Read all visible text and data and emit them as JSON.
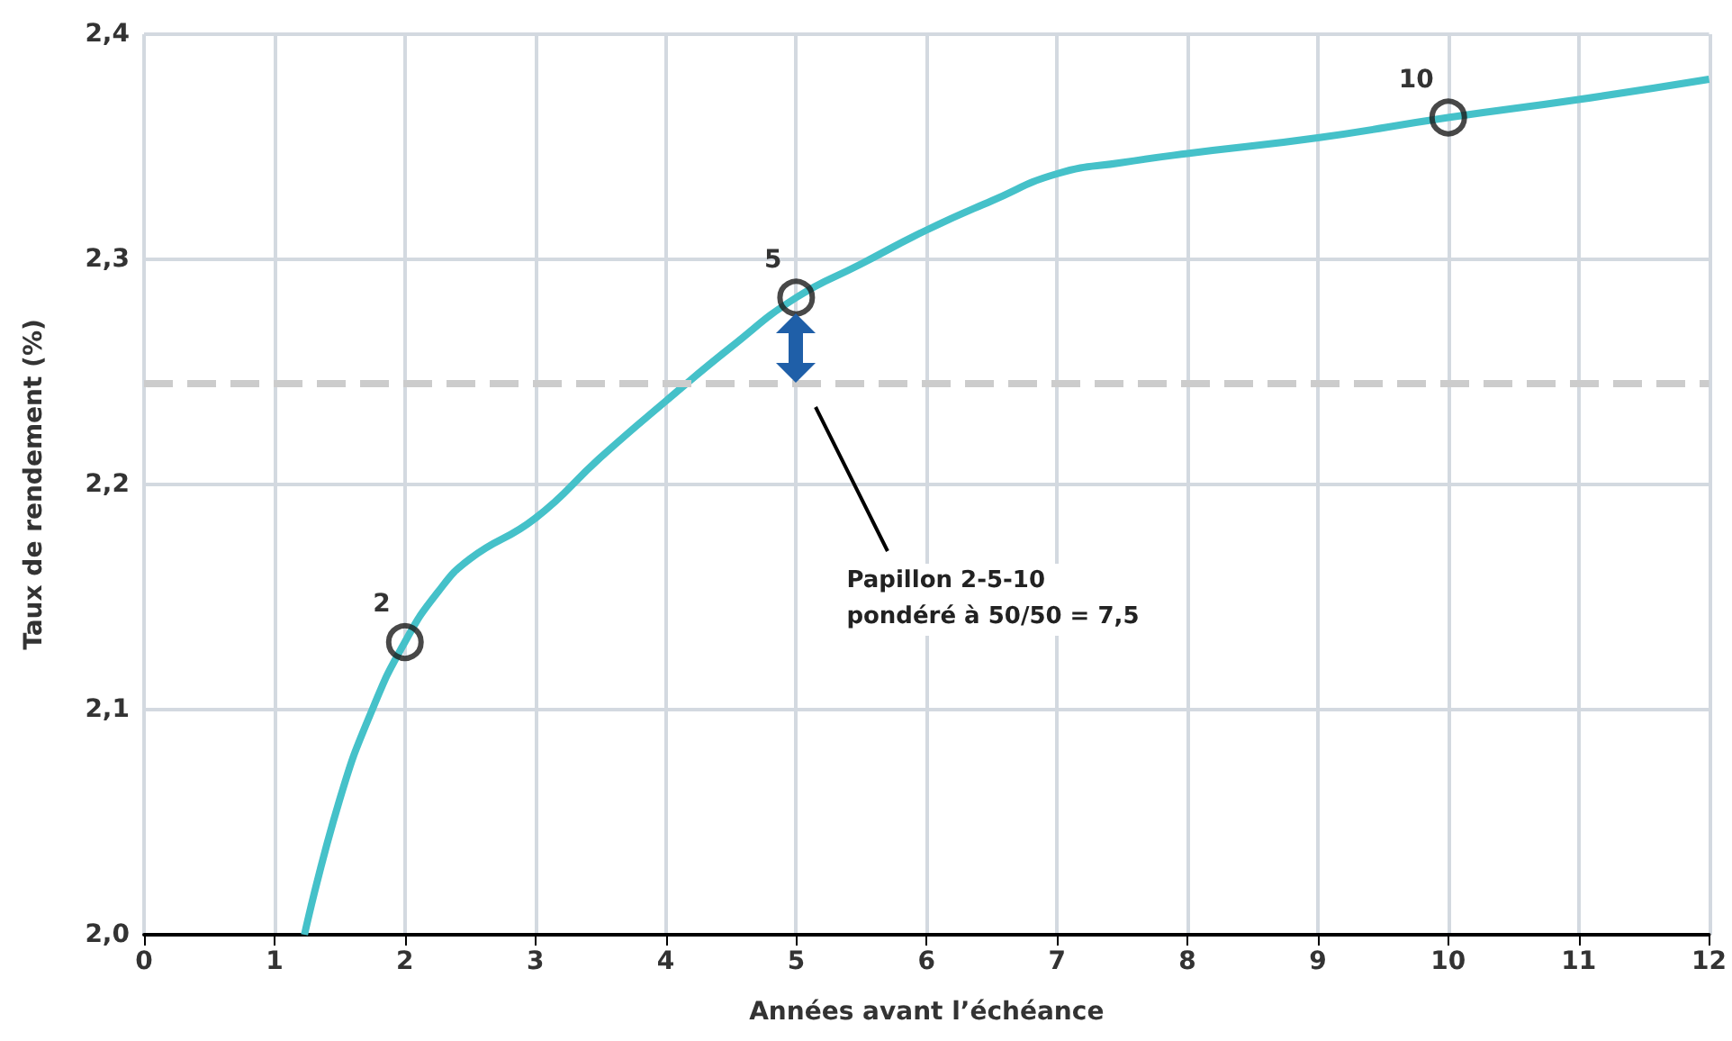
{
  "chart_data": {
    "type": "line",
    "xlabel": "Années avant l’échéance",
    "ylabel": "Taux de rendement (%)",
    "xlim": [
      0,
      12
    ],
    "xticks": [
      0,
      1,
      2,
      3,
      4,
      5,
      6,
      7,
      8,
      9,
      10,
      11,
      12
    ],
    "ylim": [
      2.0,
      2.4
    ],
    "yticks": [
      {
        "value": 2.0,
        "label": "2,0"
      },
      {
        "value": 2.1,
        "label": "2,1"
      },
      {
        "value": 2.2,
        "label": "2,2"
      },
      {
        "value": 2.3,
        "label": "2,3"
      },
      {
        "value": 2.4,
        "label": "2,4"
      }
    ],
    "grid": true,
    "series": [
      {
        "color": "#45c1c9",
        "marker": "none",
        "x": [
          1.23,
          1.5,
          1.75,
          2,
          2.25,
          2.5,
          3,
          3.5,
          4,
          4.5,
          5,
          5.5,
          6,
          6.5,
          7,
          7.5,
          8,
          9,
          10,
          11,
          12
        ],
        "values": [
          2.0,
          2.06,
          2.1,
          2.13,
          2.152,
          2.167,
          2.185,
          2.212,
          2.237,
          2.261,
          2.283,
          2.298,
          2.313,
          2.326,
          2.338,
          2.343,
          2.347,
          2.354,
          2.363,
          2.371,
          2.38
        ]
      },
      {
        "type": "scatter",
        "color": "#1a1a1a",
        "marker": "circle",
        "x": [
          2,
          5,
          10
        ],
        "values": [
          2.13,
          2.283,
          2.363
        ]
      }
    ],
    "ref_lines": [
      {
        "axis": "y",
        "value": 2.245,
        "color": "#cccccc",
        "line_style": "dashed"
      }
    ],
    "annotations": [
      "Papillon 2-5-10\npondéré à 50/50 = 7,5",
      {
        "text": "2",
        "x": 2,
        "y": 2.13
      },
      {
        "text": "5",
        "x": 5,
        "y": 2.283
      },
      {
        "text": "10",
        "x": 10,
        "y": 2.363
      }
    ]
  }
}
